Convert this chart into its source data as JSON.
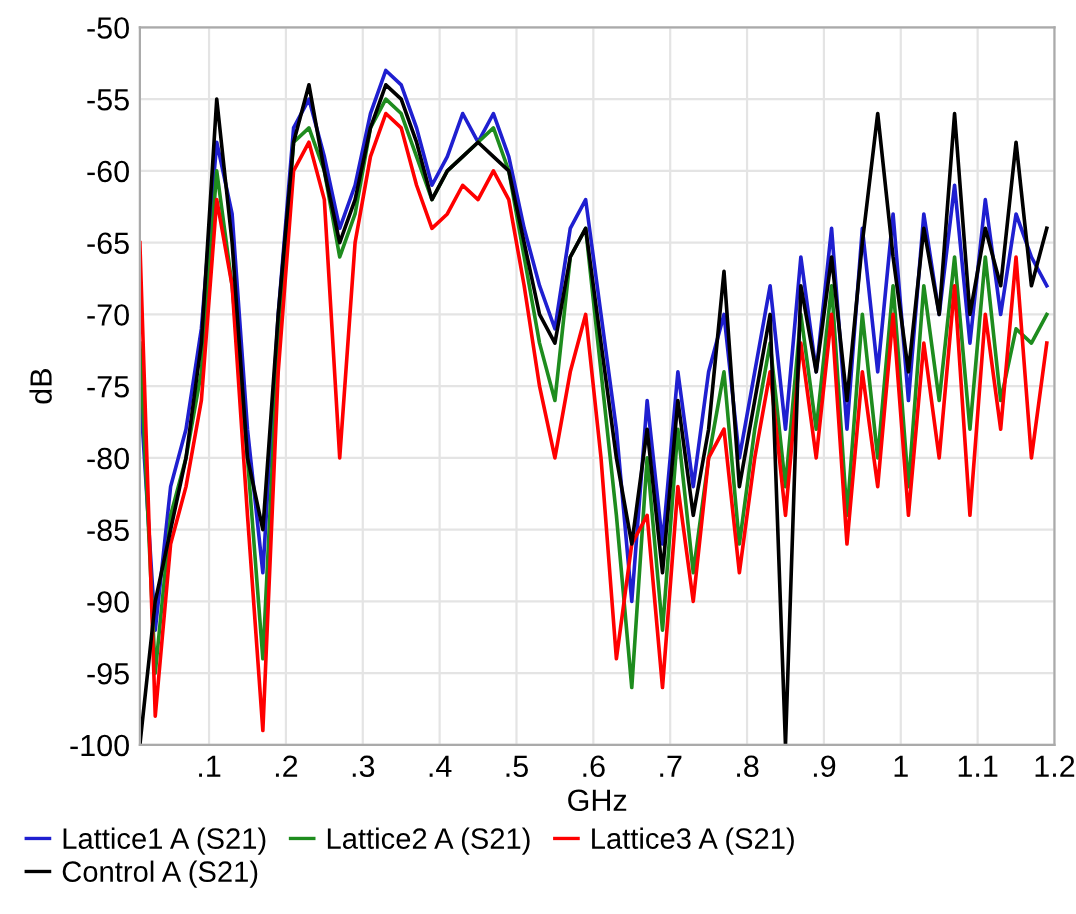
{
  "chart_data": {
    "type": "line",
    "xlabel": "GHz",
    "ylabel": "dB",
    "x": [
      0.01,
      0.03,
      0.05,
      0.07,
      0.09,
      0.11,
      0.13,
      0.15,
      0.17,
      0.19,
      0.21,
      0.23,
      0.25,
      0.27,
      0.29,
      0.31,
      0.33,
      0.35,
      0.37,
      0.39,
      0.41,
      0.43,
      0.45,
      0.47,
      0.49,
      0.51,
      0.53,
      0.55,
      0.57,
      0.59,
      0.61,
      0.63,
      0.65,
      0.67,
      0.69,
      0.71,
      0.73,
      0.75,
      0.77,
      0.79,
      0.81,
      0.83,
      0.85,
      0.87,
      0.89,
      0.91,
      0.93,
      0.95,
      0.97,
      0.99,
      1.01,
      1.03,
      1.05,
      1.07,
      1.09,
      1.11,
      1.13,
      1.15,
      1.17,
      1.19
    ],
    "series": [
      {
        "name": "Lattice1 A (S21)",
        "color": "#1f1fd0",
        "values": [
          -75,
          -92,
          -82,
          -78,
          -71,
          -58,
          -63,
          -78,
          -88,
          -70,
          -57,
          -55,
          -59,
          -64,
          -61,
          -56,
          -53,
          -54,
          -57,
          -61,
          -59,
          -56,
          -58,
          -56,
          -59,
          -64,
          -68,
          -71,
          -64,
          -62,
          -70,
          -78,
          -90,
          -76,
          -86,
          -74,
          -82,
          -74,
          -70,
          -80,
          -74,
          -68,
          -78,
          -66,
          -74,
          -64,
          -78,
          -64,
          -74,
          -63,
          -76,
          -63,
          -70,
          -61,
          -72,
          -62,
          -70,
          -63,
          -66,
          -68
        ]
      },
      {
        "name": "Lattice2 A (S21)",
        "color": "#1e8c1e",
        "values": [
          -72,
          -95,
          -84,
          -80,
          -74,
          -60,
          -68,
          -80,
          -94,
          -72,
          -58,
          -57,
          -60,
          -66,
          -63,
          -57,
          -55,
          -56,
          -59,
          -62,
          -60,
          -59,
          -58,
          -57,
          -60,
          -66,
          -72,
          -76,
          -66,
          -64,
          -74,
          -84,
          -96,
          -80,
          -92,
          -78,
          -88,
          -80,
          -74,
          -86,
          -78,
          -72,
          -82,
          -70,
          -78,
          -68,
          -84,
          -70,
          -80,
          -68,
          -82,
          -68,
          -76,
          -66,
          -78,
          -66,
          -76,
          -71,
          -72,
          -70
        ]
      },
      {
        "name": "Lattice3 A (S21)",
        "color": "#ff0000",
        "values": [
          -65,
          -98,
          -86,
          -82,
          -76,
          -62,
          -68,
          -84,
          -99,
          -74,
          -60,
          -58,
          -62,
          -80,
          -65,
          -59,
          -56,
          -57,
          -61,
          -64,
          -63,
          -61,
          -62,
          -60,
          -62,
          -68,
          -75,
          -80,
          -74,
          -70,
          -80,
          -94,
          -86,
          -84,
          -96,
          -82,
          -90,
          -80,
          -78,
          -88,
          -80,
          -74,
          -84,
          -72,
          -80,
          -70,
          -86,
          -74,
          -82,
          -70,
          -84,
          -72,
          -80,
          -68,
          -84,
          -70,
          -78,
          -66,
          -80,
          -72
        ]
      },
      {
        "name": "Control A (S21)",
        "color": "#000000",
        "values": [
          -100,
          -90,
          -85,
          -80,
          -72,
          -55,
          -65,
          -80,
          -85,
          -70,
          -58,
          -54,
          -60,
          -65,
          -62,
          -57,
          -54,
          -55,
          -58,
          -62,
          -60,
          -59,
          -58,
          -59,
          -60,
          -65,
          -70,
          -72,
          -66,
          -64,
          -72,
          -80,
          -86,
          -78,
          -88,
          -76,
          -84,
          -78,
          -67,
          -82,
          -76,
          -70,
          -100,
          -68,
          -74,
          -66,
          -76,
          -65,
          -56,
          -66,
          -74,
          -64,
          -70,
          -56,
          -70,
          -64,
          -68,
          -58,
          -68,
          -64
        ]
      }
    ],
    "xlim": [
      0.01,
      1.2
    ],
    "xticks": [
      {
        "value": 0.1,
        "label": ".1"
      },
      {
        "value": 0.2,
        "label": ".2"
      },
      {
        "value": 0.3,
        "label": ".3"
      },
      {
        "value": 0.4,
        "label": ".4"
      },
      {
        "value": 0.5,
        "label": ".5"
      },
      {
        "value": 0.6,
        "label": ".6"
      },
      {
        "value": 0.7,
        "label": ".7"
      },
      {
        "value": 0.8,
        "label": ".8"
      },
      {
        "value": 0.9,
        "label": ".9"
      },
      1,
      1.1,
      1.2
    ],
    "ylim": [
      -100,
      -50
    ],
    "yticks": [
      -100,
      -95,
      -90,
      -85,
      -80,
      -75,
      -70,
      -65,
      -60,
      -55,
      -50
    ],
    "grid": true,
    "legend": "bottom",
    "line_style": "solid"
  }
}
